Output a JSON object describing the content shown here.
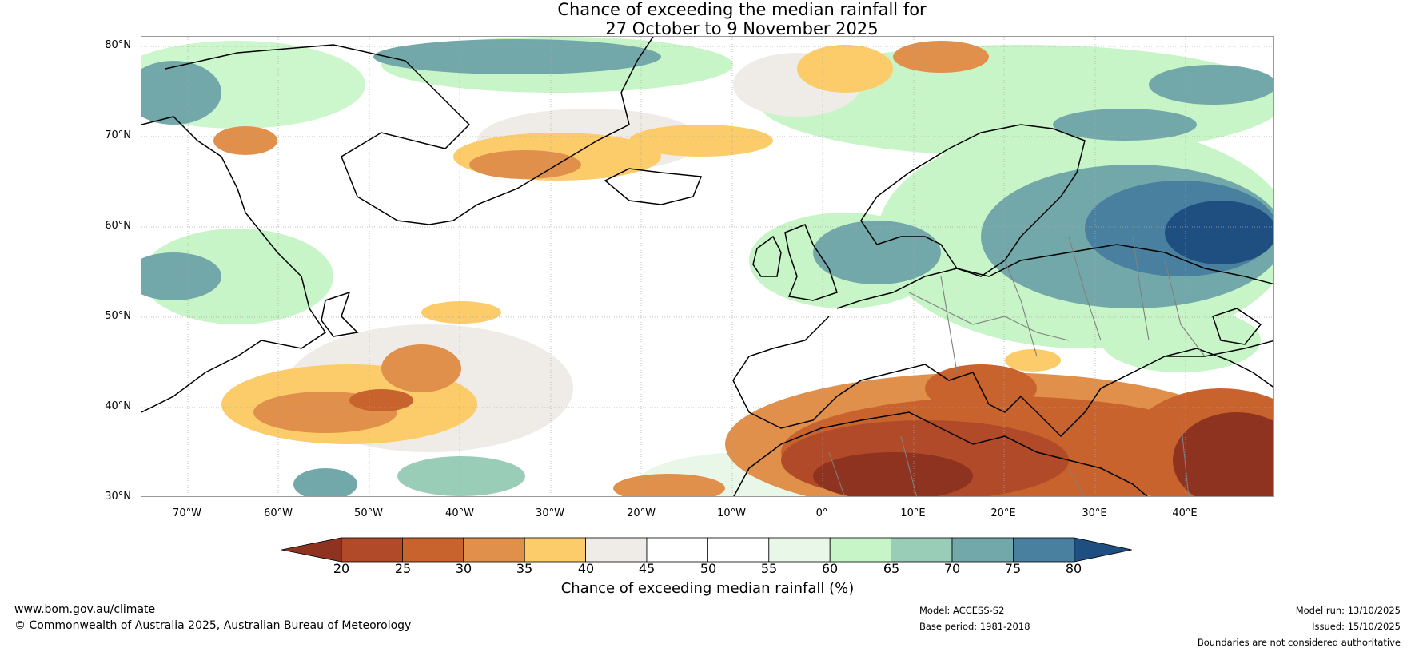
{
  "title": {
    "line1": "Chance of exceeding the median rainfall for",
    "line2": "27 October to 9 November 2025"
  },
  "lat_labels": [
    "80°N",
    "70°N",
    "60°N",
    "50°N",
    "40°N",
    "30°N"
  ],
  "lon_labels": [
    "70°W",
    "60°W",
    "50°W",
    "40°W",
    "30°W",
    "20°W",
    "10°W",
    "0°",
    "10°E",
    "20°E",
    "30°E",
    "40°E"
  ],
  "colorbar": {
    "ticks": [
      "20",
      "25",
      "30",
      "35",
      "40",
      "45",
      "50",
      "55",
      "60",
      "65",
      "70",
      "75",
      "80"
    ],
    "colors": [
      "#8e3320",
      "#b04a28",
      "#c9632e",
      "#e0904a",
      "#fccb6a",
      "#efebe6",
      "#ffffff",
      "#ffffff",
      "#e8f7e8",
      "#c7f5c7",
      "#9acdb8",
      "#72a8aa",
      "#497f9f",
      "#1f4f80"
    ],
    "label": "Chance of exceeding median rainfall (%)"
  },
  "footer": {
    "website": "www.bom.gov.au/climate",
    "copyright": "© Commonwealth of Australia 2025, Australian Bureau of Meteorology",
    "model": "Model: ACCESS-S2",
    "base_period": "Base period: 1981-2018",
    "model_run": "Model run: 13/10/2025",
    "issued": "Issued: 15/10/2025",
    "disclaimer": "Boundaries are not considered authoritative"
  }
}
